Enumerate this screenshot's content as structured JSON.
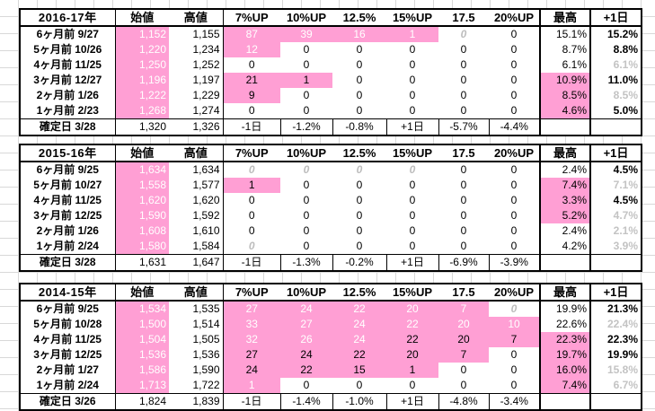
{
  "headers": [
    "",
    "始値",
    "高値",
    "7%UP",
    "10%UP",
    "12.5%",
    "15%UP",
    "17.5",
    "20%UP",
    "最高",
    "+1日"
  ],
  "colors": {
    "highlight": "#ff9fd4",
    "grid_line": "#d8d8d8",
    "faded_text": "#c3c3c3"
  },
  "tables": [
    {
      "title": "2016-17年",
      "rows": [
        {
          "label": "6ヶ月前  9/27",
          "values": [
            "1,152",
            "1,155",
            "87",
            "39",
            "16",
            "1",
            "0",
            "0",
            "15.1%",
            "15.2%"
          ]
        },
        {
          "label": "5ヶ月前  10/26",
          "values": [
            "1,220",
            "1,234",
            "12",
            "0",
            "0",
            "0",
            "0",
            "0",
            "8.7%",
            "8.8%"
          ]
        },
        {
          "label": "4ヶ月前  11/25",
          "values": [
            "1,250",
            "1,252",
            "0",
            "0",
            "0",
            "0",
            "0",
            "0",
            "6.1%",
            "6.1%"
          ]
        },
        {
          "label": "3ヶ月前  12/27",
          "values": [
            "1,196",
            "1,197",
            "21",
            "1",
            "0",
            "0",
            "0",
            "0",
            "10.9%",
            "11.0%"
          ]
        },
        {
          "label": "2ヶ月前  1/26",
          "values": [
            "1,222",
            "1,229",
            "9",
            "0",
            "0",
            "0",
            "0",
            "0",
            "8.5%",
            "8.5%"
          ]
        },
        {
          "label": "1ヶ月前  2/23",
          "values": [
            "1,268",
            "1,274",
            "0",
            "0",
            "0",
            "0",
            "0",
            "0",
            "4.6%",
            "5.0%"
          ]
        }
      ],
      "confirm": {
        "label": "確定日  3/28",
        "values": [
          "1,320",
          "1,326",
          "-1日",
          "-1.2%",
          "-0.8%",
          "+1日",
          "-5.7%",
          "-4.4%",
          "",
          ""
        ]
      }
    },
    {
      "title": "2015-16年",
      "rows": [
        {
          "label": "6ヶ月前  9/25",
          "values": [
            "1,634",
            "1,634",
            "0",
            "0",
            "0",
            "0",
            "0",
            "0",
            "2.4%",
            "4.5%"
          ]
        },
        {
          "label": "5ヶ月前  10/27",
          "values": [
            "1,558",
            "1,577",
            "1",
            "0",
            "0",
            "0",
            "0",
            "0",
            "7.4%",
            "7.1%"
          ]
        },
        {
          "label": "4ヶ月前  11/25",
          "values": [
            "1,620",
            "1,620",
            "0",
            "0",
            "0",
            "0",
            "0",
            "0",
            "3.3%",
            "4.5%"
          ]
        },
        {
          "label": "3ヶ月前  12/25",
          "values": [
            "1,590",
            "1,592",
            "0",
            "0",
            "0",
            "0",
            "0",
            "0",
            "5.2%",
            "4.7%"
          ]
        },
        {
          "label": "2ヶ月前  1/26",
          "values": [
            "1,608",
            "1,610",
            "0",
            "0",
            "0",
            "0",
            "0",
            "0",
            "2.4%",
            "2.1%"
          ]
        },
        {
          "label": "1ヶ月前  2/24",
          "values": [
            "1,580",
            "1,584",
            "0",
            "0",
            "0",
            "0",
            "0",
            "0",
            "4.2%",
            "3.9%"
          ]
        }
      ],
      "confirm": {
        "label": "確定日  3/28",
        "values": [
          "1,631",
          "1,647",
          "-1日",
          "-1.3%",
          "-0.2%",
          "+1日",
          "-6.9%",
          "-3.9%",
          "",
          ""
        ]
      }
    },
    {
      "title": "2014-15年",
      "rows": [
        {
          "label": "6ヶ月前  9/25",
          "values": [
            "1,534",
            "1,535",
            "27",
            "24",
            "22",
            "20",
            "7",
            "0",
            "19.9%",
            "21.3%"
          ]
        },
        {
          "label": "5ヶ月前  10/28",
          "values": [
            "1,500",
            "1,514",
            "33",
            "27",
            "24",
            "22",
            "20",
            "10",
            "22.6%",
            "22.4%"
          ]
        },
        {
          "label": "4ヶ月前  11/25",
          "values": [
            "1,504",
            "1,505",
            "32",
            "26",
            "24",
            "22",
            "20",
            "7",
            "22.3%",
            "22.3%"
          ]
        },
        {
          "label": "3ヶ月前  12/25",
          "values": [
            "1,536",
            "1,536",
            "27",
            "24",
            "22",
            "20",
            "7",
            "0",
            "19.7%",
            "19.9%"
          ]
        },
        {
          "label": "2ヶ月前  1/27",
          "values": [
            "1,586",
            "1,590",
            "24",
            "22",
            "15",
            "1",
            "0",
            "0",
            "16.0%",
            "15.8%"
          ]
        },
        {
          "label": "1ヶ月前  2/24",
          "values": [
            "1,713",
            "1,722",
            "1",
            "0",
            "0",
            "0",
            "0",
            "0",
            "7.4%",
            "6.7%"
          ]
        }
      ],
      "confirm": {
        "label": "確定日  3/26",
        "values": [
          "1,824",
          "1,839",
          "-1日",
          "-1.4%",
          "-1.0%",
          "+1日",
          "-4.8%",
          "-3.4%",
          "",
          ""
        ]
      }
    }
  ]
}
